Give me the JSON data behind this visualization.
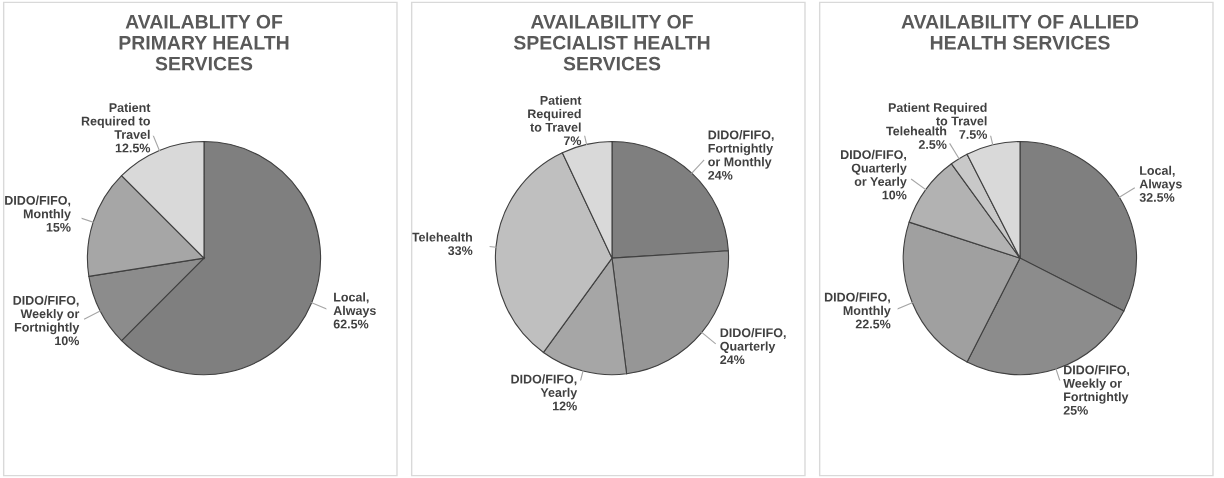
{
  "chart_data": [
    {
      "type": "pie",
      "title": "AVAILABLITY OF\nPRIMARY HEALTH\nSERVICES",
      "categories": [
        "Local,\nAlways",
        "DIDO/FIFO,\nWeekly or\nFortnightly",
        "DIDO/FIFO,\nMonthly",
        "Patient\nRequired to\nTravel"
      ],
      "values": [
        62.5,
        10,
        15,
        12.5
      ],
      "colors": [
        "#7f7f7f",
        "#8c8c8c",
        "#a6a6a6",
        "#d9d9d9"
      ],
      "value_labels": [
        "62.5%",
        "10%",
        "15%",
        "12.5%"
      ],
      "legend": false
    },
    {
      "type": "pie",
      "title": "AVAILABILITY OF\nSPECIALIST HEALTH\nSERVICES",
      "categories": [
        "DIDO/FIFO,\nFortnightly\nor Monthly",
        "DIDO/FIFO,\nQuarterly",
        "DIDO/FIFO,\nYearly",
        "Telehealth",
        "Patient\nRequired\nto Travel"
      ],
      "values": [
        24,
        24,
        12,
        33,
        7
      ],
      "colors": [
        "#7f7f7f",
        "#969696",
        "#a6a6a6",
        "#bfbfbf",
        "#d9d9d9"
      ],
      "value_labels": [
        "24%",
        "24%",
        "12%",
        "33%",
        "7%"
      ],
      "legend": false
    },
    {
      "type": "pie",
      "title": "AVAILABILITY OF ALLIED\nHEALTH SERVICES",
      "categories": [
        "Local,\nAlways",
        "DIDO/FIFO,\nWeekly or\nFortnightly",
        "DIDO/FIFO,\nMonthly",
        "DIDO/FIFO,\nQuarterly\nor Yearly",
        "Telehealth",
        "Patient Required\nto Travel"
      ],
      "values": [
        32.5,
        25,
        22.5,
        10,
        2.5,
        7.5
      ],
      "colors": [
        "#7f7f7f",
        "#8c8c8c",
        "#a0a0a0",
        "#b2b2b2",
        "#c8c8c8",
        "#d9d9d9"
      ],
      "value_labels": [
        "32.5%",
        "25%",
        "22.5%",
        "10%",
        "2.5%",
        "7.5%"
      ],
      "legend": false
    }
  ]
}
